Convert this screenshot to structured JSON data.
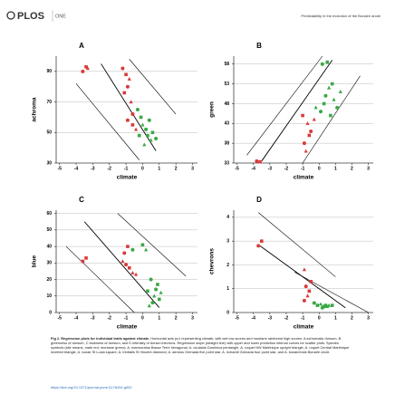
{
  "header": {
    "logo": "PLOS",
    "journal": "ONE",
    "running_title": "Predictability in the evolution of the Bonaire anole"
  },
  "chart_data": [
    {
      "type": "scatter",
      "panel": "A",
      "x_label": "climate",
      "y_label": "achroma",
      "xlim": [
        -5.2,
        3.3
      ],
      "ylim": [
        30,
        100
      ],
      "xticks": [
        -5,
        -4,
        -3,
        -2,
        -1,
        0,
        1,
        2,
        3
      ],
      "yticks": [
        30,
        50,
        70,
        90
      ],
      "grid": true,
      "series": [
        {
          "color": "#d93a3a",
          "x": [
            -3.6,
            -3.4,
            -3.3,
            -1.2,
            -1.0,
            -0.8,
            -0.9,
            -1.1,
            -0.7,
            -0.9,
            -0.6,
            -0.4,
            -0.6
          ],
          "y": [
            90,
            93,
            92,
            92,
            88,
            85,
            80,
            76,
            70,
            58,
            55,
            52,
            62
          ]
        },
        {
          "color": "#3aa846",
          "x": [
            -0.3,
            -0.1,
            0,
            0.2,
            0.3,
            0.5,
            0.4,
            0.6,
            0.1,
            0.8,
            -0.2
          ],
          "y": [
            65,
            60,
            55,
            52,
            48,
            45,
            58,
            50,
            42,
            46,
            48
          ]
        }
      ],
      "lines": [
        {
          "x": [
            -2.5,
            0.8
          ],
          "y": [
            95,
            38
          ]
        },
        {
          "x": [
            -0.8,
            2
          ],
          "y": [
            98,
            62
          ]
        },
        {
          "x": [
            -4,
            -0.2
          ],
          "y": [
            82,
            32
          ]
        }
      ]
    },
    {
      "type": "scatter",
      "panel": "B",
      "x_label": "climate",
      "y_label": "green",
      "xlim": [
        -5.2,
        3.3
      ],
      "ylim": [
        33,
        60
      ],
      "xticks": [
        -5,
        -4,
        -3,
        -2,
        -1,
        0,
        1,
        2,
        3
      ],
      "yticks": [
        33,
        38,
        43,
        48,
        53,
        58
      ],
      "grid": true,
      "series": [
        {
          "color": "#d93a3a",
          "x": [
            -3.8,
            -3.6,
            -0.8,
            -0.9,
            -0.6,
            -0.7,
            -0.5,
            -1,
            -0.3
          ],
          "y": [
            33.5,
            33.3,
            36,
            38,
            40,
            43,
            41,
            45,
            44
          ]
        },
        {
          "color": "#3aa846",
          "x": [
            0.2,
            0.5,
            0.6,
            0.4,
            0.8,
            0.9,
            1.1,
            0.3,
            1.3,
            0.1,
            0.7,
            -0.2
          ],
          "y": [
            58,
            58.5,
            52,
            50,
            53,
            49,
            47,
            48,
            51,
            46,
            45,
            47
          ]
        }
      ],
      "lines": [
        {
          "x": [
            -3.5,
            0.8
          ],
          "y": [
            33.5,
            59
          ]
        },
        {
          "x": [
            -4.4,
            0.2
          ],
          "y": [
            35,
            60
          ]
        },
        {
          "x": [
            -1,
            2.5
          ],
          "y": [
            33,
            55
          ]
        }
      ]
    },
    {
      "type": "scatter",
      "panel": "C",
      "x_label": "climate",
      "y_label": "blue",
      "xlim": [
        -5.2,
        3.3
      ],
      "ylim": [
        0,
        62
      ],
      "xticks": [
        -5,
        -4,
        -3,
        -2,
        -1,
        0,
        1,
        2,
        3
      ],
      "yticks": [
        0,
        10,
        20,
        30,
        40,
        50,
        60
      ],
      "grid": true,
      "series": [
        {
          "color": "#d93a3a",
          "x": [
            -3.6,
            -3.4,
            -1.2,
            -1,
            -0.8,
            -0.6,
            -1.1,
            -0.9,
            -0.4
          ],
          "y": [
            31,
            33,
            31,
            29,
            27,
            24,
            36,
            40,
            23
          ]
        },
        {
          "color": "#3aa846",
          "x": [
            -0.6,
            0,
            0.2,
            0.5,
            0.3,
            0.7,
            0.8,
            1,
            0.4,
            0.6,
            0.9,
            1.1
          ],
          "y": [
            38,
            41,
            38,
            20,
            13,
            10,
            14,
            8,
            4,
            6,
            17,
            12
          ]
        }
      ],
      "lines": [
        {
          "x": [
            -3.5,
            1
          ],
          "y": [
            55,
            3
          ]
        },
        {
          "x": [
            -1.5,
            2.6
          ],
          "y": [
            60,
            22
          ]
        },
        {
          "x": [
            -4.6,
            -0.5
          ],
          "y": [
            40,
            0
          ]
        }
      ]
    },
    {
      "type": "scatter",
      "panel": "D",
      "x_label": "climate",
      "y_label": "chevrons",
      "xlim": [
        -5.2,
        3.3
      ],
      "ylim": [
        0,
        4.3
      ],
      "xticks": [
        -5,
        -4,
        -3,
        -2,
        -1,
        0,
        1,
        2,
        3
      ],
      "yticks": [
        0,
        1,
        2,
        3,
        4
      ],
      "grid": true,
      "series": [
        {
          "color": "#d93a3a",
          "x": [
            -3.7,
            -3.5,
            -0.9,
            -0.8,
            -0.6,
            -0.7,
            -0.9,
            -0.5
          ],
          "y": [
            2.8,
            3,
            1.8,
            1.1,
            0.9,
            0.7,
            0.5,
            1.3
          ]
        },
        {
          "color": "#3aa846",
          "x": [
            -0.3,
            -0.1,
            0.1,
            0.2,
            0.4,
            0.6,
            0.3,
            0.8,
            0.5
          ],
          "y": [
            0.4,
            0.3,
            0.35,
            0.2,
            0.3,
            0.3,
            0.25,
            0.3,
            0.25
          ]
        }
      ],
      "lines": [
        {
          "x": [
            -3.6,
            1.6
          ],
          "y": [
            2.8,
            0.2
          ]
        },
        {
          "x": [
            -3.7,
            1
          ],
          "y": [
            4.2,
            1.5
          ]
        },
        {
          "x": [
            -1.5,
            3
          ],
          "y": [
            1.7,
            0
          ]
        }
      ]
    }
  ],
  "caption": {
    "label": "Fig 2. Regression plots for individual traits against climate.",
    "text": "Horizontal axis pc1 representing climate, with wet low scores and montane rainforest high scores. A achromatic dorsum, B greenness of dorsum, C blueness of dorsum, and D intensity of dorsal chevrons. Regression slope (straight line) with upper and lower prediction interval curves for scatter plots. Species symbols (site means, male red, montane green): A. marmoratus Basse Terre hexagonal, A. oculatus Dominica pentangle, A. roquet NW Martinique upright triangle, A. roquet Central Martinique inverted triangle, A. luciae St Lucia square, A. trinitatis St Vincent diamond, A. aeneus Grenada five point star, A. richardii Grenada four point star, and A. bonairensis Bonaire circle."
  },
  "doi": "https://doi.org/10.1371/journal.pone.0178434.g002"
}
